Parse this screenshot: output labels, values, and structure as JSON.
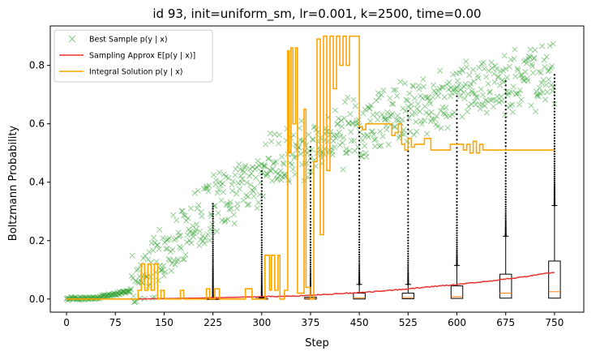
{
  "chart_data": {
    "type": "line",
    "title": "id 93, init=uniform_sm, lr=0.001, k=2500, time=0.00",
    "xlabel": "Step",
    "ylabel": "Boltzmann Probability",
    "xlim": [
      -25,
      795
    ],
    "ylim": [
      -0.045,
      0.935
    ],
    "xticks": [
      0,
      75,
      150,
      225,
      300,
      375,
      450,
      525,
      600,
      675,
      750
    ],
    "yticks": [
      0.0,
      0.2,
      0.4,
      0.6,
      0.8
    ],
    "ytick_labels": [
      "0.0",
      "0.2",
      "0.4",
      "0.6",
      "0.8"
    ],
    "legend_position": "top-left",
    "legend": [
      {
        "label": "Best Sample p(y | x)",
        "marker": "x",
        "color": "#2ca02c"
      },
      {
        "label": "Sampling Approx E[p(y | x)]",
        "marker": "line",
        "color": "#e8322d"
      },
      {
        "label": "Integral Solution p(y | x)",
        "marker": "line",
        "color": "#ffa500"
      }
    ],
    "series": [
      {
        "name": "Best Sample p(y | x)",
        "type": "scatter-trend",
        "color": "#2ca02c",
        "x": [
          0,
          50,
          100,
          150,
          200,
          250,
          300,
          350,
          400,
          450,
          500,
          550,
          600,
          650,
          700,
          750
        ],
        "y": [
          0.0,
          0.005,
          0.03,
          0.15,
          0.27,
          0.36,
          0.43,
          0.49,
          0.54,
          0.58,
          0.62,
          0.66,
          0.69,
          0.73,
          0.75,
          0.76
        ]
      },
      {
        "name": "Sampling Approx E[p(y | x)]",
        "type": "line",
        "color": "#e8322d",
        "x": [
          0,
          100,
          200,
          300,
          350,
          400,
          450,
          500,
          550,
          600,
          650,
          700,
          750
        ],
        "y": [
          0.0,
          0.0,
          0.003,
          0.008,
          0.01,
          0.016,
          0.022,
          0.03,
          0.04,
          0.05,
          0.062,
          0.075,
          0.092
        ]
      },
      {
        "name": "Integral Solution p(y | x)",
        "type": "step",
        "color": "#ffa500",
        "x": [
          0,
          100,
          110,
          115,
          120,
          125,
          130,
          135,
          140,
          145,
          150,
          155,
          160,
          175,
          180,
          195,
          200,
          215,
          220,
          228,
          235,
          245,
          250,
          265,
          270,
          275,
          285,
          290,
          305,
          312,
          315,
          320,
          325,
          328,
          335,
          340,
          342,
          345,
          348,
          352,
          355,
          365,
          368,
          375,
          380,
          385,
          390,
          395,
          400,
          405,
          410,
          415,
          420,
          425,
          430,
          435,
          450,
          455,
          460,
          500,
          505,
          510,
          515,
          520,
          525,
          530,
          535,
          550,
          560,
          590,
          610,
          615,
          620,
          625,
          630,
          635,
          640,
          650,
          750
        ],
        "y": [
          0.0,
          0.0,
          0.03,
          0.12,
          0.03,
          0.12,
          0.03,
          0.12,
          0.0,
          0.03,
          0.0,
          0.0,
          0.0,
          0.03,
          0.0,
          0.0,
          0.0,
          0.035,
          0.0,
          0.035,
          0.0,
          0.0,
          0.0,
          0.0,
          0.0,
          0.035,
          0.0,
          0.0,
          0.15,
          0.03,
          0.15,
          0.03,
          0.15,
          0.0,
          0.03,
          0.85,
          0.5,
          0.86,
          0.6,
          0.86,
          0.02,
          0.65,
          0.04,
          0.0,
          0.47,
          0.89,
          0.22,
          0.9,
          0.44,
          0.9,
          0.72,
          0.9,
          0.8,
          0.9,
          0.8,
          0.9,
          0.59,
          0.58,
          0.6,
          0.56,
          0.57,
          0.6,
          0.53,
          0.51,
          0.55,
          0.52,
          0.53,
          0.55,
          0.51,
          0.53,
          0.51,
          0.53,
          0.5,
          0.54,
          0.5,
          0.53,
          0.51,
          0.51,
          0.51
        ]
      }
    ],
    "boxplots": [
      {
        "x": 225,
        "q1": 0.0,
        "median": 0.0,
        "q3": 0.001,
        "whisker_high": 0.002
      },
      {
        "x": 300,
        "q1": 0.0,
        "median": 0.0,
        "q3": 0.002,
        "whisker_high": 0.005
      },
      {
        "x": 375,
        "q1": 0.0,
        "median": 0.002,
        "q3": 0.006,
        "whisker_high": 0.013
      },
      {
        "x": 450,
        "q1": 0.0,
        "median": 0.004,
        "q3": 0.02,
        "whisker_high": 0.05
      },
      {
        "x": 525,
        "q1": 0.001,
        "median": 0.005,
        "q3": 0.02,
        "whisker_high": 0.05
      },
      {
        "x": 600,
        "q1": 0.002,
        "median": 0.008,
        "q3": 0.045,
        "whisker_high": 0.115
      },
      {
        "x": 675,
        "q1": 0.003,
        "median": 0.02,
        "q3": 0.085,
        "whisker_high": 0.215
      },
      {
        "x": 750,
        "q1": 0.003,
        "median": 0.025,
        "q3": 0.13,
        "whisker_high": 0.32
      }
    ],
    "grid": false
  }
}
